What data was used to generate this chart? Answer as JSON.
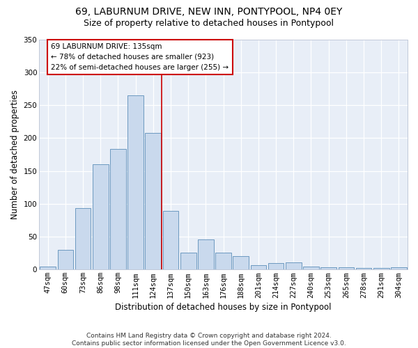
{
  "title1": "69, LABURNUM DRIVE, NEW INN, PONTYPOOL, NP4 0EY",
  "title2": "Size of property relative to detached houses in Pontypool",
  "xlabel": "Distribution of detached houses by size in Pontypool",
  "ylabel": "Number of detached properties",
  "categories": [
    "47sqm",
    "60sqm",
    "73sqm",
    "86sqm",
    "98sqm",
    "111sqm",
    "124sqm",
    "137sqm",
    "150sqm",
    "163sqm",
    "176sqm",
    "188sqm",
    "201sqm",
    "214sqm",
    "227sqm",
    "240sqm",
    "253sqm",
    "265sqm",
    "278sqm",
    "291sqm",
    "304sqm"
  ],
  "values": [
    5,
    30,
    93,
    160,
    183,
    265,
    208,
    89,
    26,
    46,
    26,
    20,
    7,
    10,
    11,
    5,
    3,
    3,
    2,
    2,
    3
  ],
  "bar_color": "#c9d9ed",
  "bar_edge_color": "#5b8db8",
  "vline_x": 6.5,
  "marker_label": "69 LABURNUM DRIVE: 135sqm",
  "annotation_line1": "← 78% of detached houses are smaller (923)",
  "annotation_line2": "22% of semi-detached houses are larger (255) →",
  "vline_color": "#cc0000",
  "ylim": [
    0,
    350
  ],
  "yticks": [
    0,
    50,
    100,
    150,
    200,
    250,
    300,
    350
  ],
  "footer1": "Contains HM Land Registry data © Crown copyright and database right 2024.",
  "footer2": "Contains public sector information licensed under the Open Government Licence v3.0.",
  "fig_bg_color": "#ffffff",
  "plot_bg_color": "#e8eef7",
  "title_fontsize": 10,
  "subtitle_fontsize": 9,
  "axis_label_fontsize": 8.5,
  "tick_fontsize": 7.5,
  "annot_fontsize": 7.5,
  "footer_fontsize": 6.5
}
